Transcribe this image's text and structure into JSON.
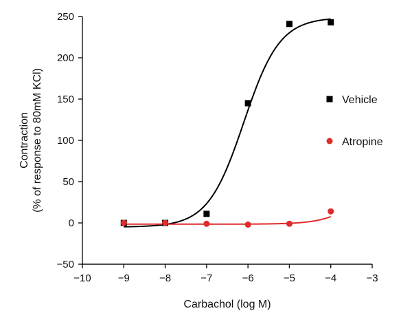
{
  "chart_data": {
    "type": "scatter",
    "xlabel": "Carbachol (log M)",
    "ylabel": [
      "Contraction",
      "(% of response to 80mM KCl)"
    ],
    "xlim": [
      -10,
      -3
    ],
    "ylim": [
      -50,
      250
    ],
    "xticks": [
      "−10",
      "−9",
      "−8",
      "−7",
      "−6",
      "−5",
      "−4",
      "−3"
    ],
    "yticks": [
      "−50",
      "0",
      "50",
      "100",
      "150",
      "200",
      "250"
    ],
    "grid": false,
    "legend_position": "right",
    "series": [
      {
        "name": "Vehicle",
        "marker": "square",
        "color": "#000000",
        "points": [
          [
            -9,
            0
          ],
          [
            -8,
            0
          ],
          [
            -7,
            11
          ],
          [
            -6,
            145
          ],
          [
            -5,
            241
          ],
          [
            -4,
            243
          ]
        ],
        "fit": {
          "model": "four-parameter-logistic",
          "bottom": -5,
          "top": 249,
          "logEC50": -6.1,
          "hill": 1.0
        }
      },
      {
        "name": "Atropine",
        "marker": "circle",
        "color": "#e02b2b",
        "points": [
          [
            -9,
            0
          ],
          [
            -8,
            0
          ],
          [
            -7,
            -1
          ],
          [
            -6,
            -2
          ],
          [
            -5,
            -1
          ],
          [
            -4,
            14
          ]
        ],
        "fit": {
          "model": "four-parameter-logistic",
          "bottom": -1.5,
          "top": 80,
          "logEC50": -3.1,
          "hill": 1.0
        }
      }
    ]
  }
}
